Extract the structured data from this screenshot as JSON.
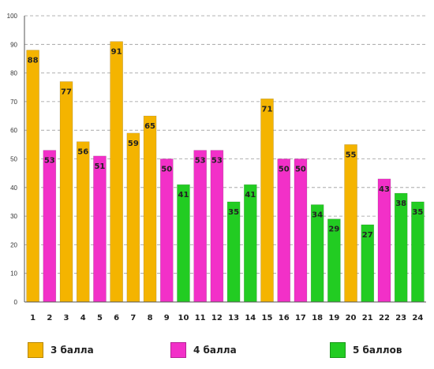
{
  "chart_data": {
    "type": "bar",
    "categories": [
      "1",
      "2",
      "3",
      "4",
      "5",
      "6",
      "7",
      "8",
      "9",
      "10",
      "11",
      "12",
      "13",
      "14",
      "15",
      "16",
      "17",
      "18",
      "19",
      "20",
      "21",
      "22",
      "23",
      "24"
    ],
    "values": [
      88,
      53,
      77,
      56,
      51,
      91,
      59,
      65,
      50,
      41,
      53,
      53,
      35,
      41,
      71,
      50,
      50,
      34,
      29,
      55,
      27,
      43,
      38,
      35
    ],
    "groups": [
      0,
      1,
      0,
      0,
      1,
      0,
      0,
      0,
      1,
      2,
      1,
      1,
      2,
      2,
      0,
      1,
      1,
      2,
      2,
      0,
      2,
      1,
      2,
      2
    ],
    "legend": [
      {
        "label": "3 балла",
        "color": "#F4B400"
      },
      {
        "label": "4 балла",
        "color": "#F230C8"
      },
      {
        "label": "5 баллов",
        "color": "#22CC22"
      }
    ],
    "yticks": [
      "0",
      "10",
      "20",
      "30",
      "40",
      "50",
      "60",
      "70",
      "80",
      "90",
      "100"
    ],
    "ylim": [
      0,
      100
    ],
    "grid": true,
    "title": "",
    "xlabel": "",
    "ylabel": ""
  }
}
